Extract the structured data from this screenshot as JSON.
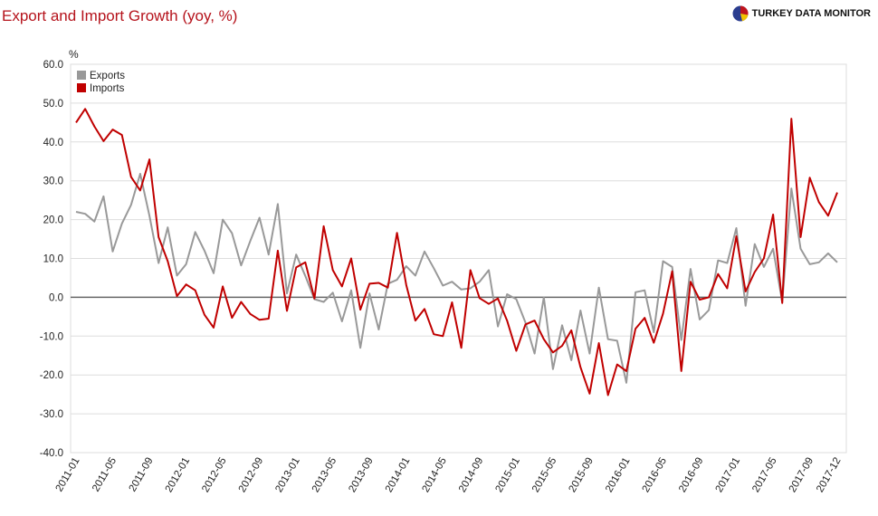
{
  "header": {
    "title": "Export and Import Growth (yoy, %)",
    "logo_text": "TURKEY DATA MONITOR"
  },
  "chart_data": {
    "type": "line",
    "title": "Export and Import Growth (yoy, %)",
    "unit_label": "%",
    "ylim": [
      -40,
      60
    ],
    "yticks": [
      60,
      50,
      40,
      30,
      20,
      10,
      0,
      -10,
      -20,
      -30,
      -40
    ],
    "ytick_labels": [
      "60.0",
      "50.0",
      "40.0",
      "30.0",
      "20.0",
      "10.0",
      "0.0",
      "-10.0",
      "-20.0",
      "-30.0",
      "-40.0"
    ],
    "xtick_labels": [
      "2011-01",
      "2011-05",
      "2011-09",
      "2012-01",
      "2012-05",
      "2012-09",
      "2013-01",
      "2013-05",
      "2013-09",
      "2014-01",
      "2014-05",
      "2014-09",
      "2015-01",
      "2015-05",
      "2015-09",
      "2016-01",
      "2016-05",
      "2016-09",
      "2017-01",
      "2017-05",
      "2017-09",
      "2017-12"
    ],
    "x_start": "2011-01",
    "x_end": "2017-12",
    "grid": true,
    "legend_position": "top-left",
    "series": [
      {
        "name": "Exports",
        "color": "#999999",
        "values": [
          22.0,
          21.5,
          19.5,
          26.0,
          11.8,
          19.0,
          23.8,
          31.8,
          21.0,
          8.8,
          18.0,
          5.6,
          8.5,
          16.8,
          12.0,
          6.2,
          20.0,
          16.5,
          8.2,
          14.5,
          20.5,
          11.0,
          24.0,
          1.0,
          11.0,
          5.5,
          -0.5,
          -1.2,
          1.2,
          -6.2,
          1.8,
          -13.0,
          1.0,
          -8.3,
          3.5,
          4.5,
          8.0,
          5.6,
          11.8,
          7.5,
          3.0,
          4.0,
          2.0,
          2.3,
          4.0,
          7.0,
          -7.5,
          0.8,
          -0.5,
          -6.5,
          -14.5,
          0.0,
          -18.5,
          -7.2,
          -16.2,
          -3.4,
          -14.5,
          2.5,
          -10.8,
          -11.2,
          -22.0,
          1.3,
          1.8,
          -9.0,
          9.3,
          7.8,
          -11.0,
          7.3,
          -5.7,
          -3.3,
          9.5,
          8.8,
          17.8,
          -2.2,
          13.7,
          7.8,
          12.5,
          -1.2,
          28.0,
          12.5,
          8.5,
          9.0,
          11.3,
          9.0
        ]
      },
      {
        "name": "Imports",
        "color": "#c00000",
        "values": [
          45.0,
          48.5,
          44.0,
          40.2,
          43.2,
          41.8,
          31.0,
          27.5,
          35.5,
          15.5,
          9.3,
          0.3,
          3.3,
          1.8,
          -4.5,
          -7.8,
          2.8,
          -5.3,
          -1.2,
          -4.3,
          -5.8,
          -5.5,
          12.0,
          -3.5,
          7.7,
          9.0,
          -0.3,
          18.3,
          7.0,
          2.8,
          10.0,
          -3.2,
          3.5,
          3.7,
          2.5,
          16.6,
          3.2,
          -6.0,
          -3.0,
          -9.5,
          -10.0,
          -1.3,
          -13.0,
          7.0,
          -0.2,
          -1.7,
          -0.3,
          -6.0,
          -13.8,
          -7.0,
          -6.0,
          -10.8,
          -14.2,
          -12.5,
          -8.5,
          -18.0,
          -24.8,
          -11.8,
          -25.2,
          -17.3,
          -19.0,
          -8.1,
          -5.3,
          -11.7,
          -4.2,
          6.7,
          -19.0,
          4.0,
          -0.6,
          0.0,
          6.0,
          2.3,
          15.7,
          1.5,
          6.5,
          10.0,
          21.3,
          -1.5,
          46.0,
          15.5,
          30.8,
          24.5,
          21.0,
          27.0
        ]
      }
    ]
  },
  "colors": {
    "title": "#b5121b",
    "grid": "#dddddd",
    "zero_line": "#666666",
    "axis_text": "#222222"
  }
}
